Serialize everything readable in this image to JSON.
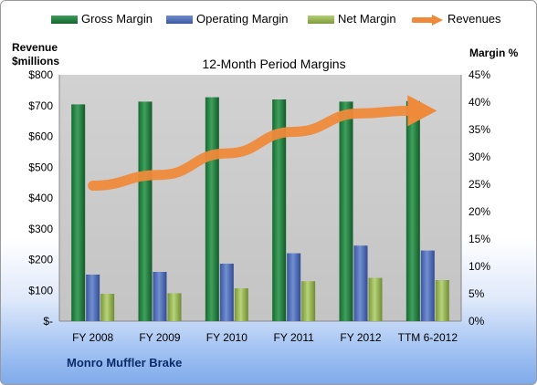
{
  "legend": {
    "gross": "Gross Margin",
    "operating": "Operating Margin",
    "net": "Net Margin",
    "revenues": "Revenues"
  },
  "axis": {
    "left_title_line1": "Revenue",
    "left_title_line2": "$millions",
    "right_title": "Margin %"
  },
  "company": "Monro Muffler Brake",
  "colors": {
    "gross": "#1e7a3c",
    "operating": "#4a68b0",
    "net": "#8fb04e",
    "revenues": "#ee8a3a",
    "plot_background": "#cccccc"
  },
  "chart_data": {
    "type": "bar",
    "title": "12-Month Period Margins",
    "categories": [
      "FY 2008",
      "FY 2009",
      "FY 2010",
      "FY 2011",
      "FY 2012",
      "TTM 6-2012"
    ],
    "series": [
      {
        "name": "Gross Margin",
        "axis": "right",
        "values": [
          39.6,
          40.1,
          40.9,
          40.5,
          40.1,
          40.2
        ]
      },
      {
        "name": "Operating Margin",
        "axis": "right",
        "values": [
          8.5,
          9.0,
          10.5,
          12.4,
          13.8,
          12.9
        ]
      },
      {
        "name": "Net Margin",
        "axis": "right",
        "values": [
          5.0,
          5.1,
          6.0,
          7.3,
          7.9,
          7.5
        ]
      },
      {
        "name": "Revenues",
        "axis": "left",
        "type": "line",
        "values": [
          440,
          475,
          545,
          615,
          675,
          685
        ]
      }
    ],
    "left_axis": {
      "min": 0,
      "max": 800,
      "step": 100,
      "ticks": [
        "$-",
        "$100",
        "$200",
        "$300",
        "$400",
        "$500",
        "$600",
        "$700",
        "$800"
      ]
    },
    "right_axis": {
      "min": 0,
      "max": 45,
      "step": 5,
      "ticks": [
        "0%",
        "5%",
        "10%",
        "15%",
        "20%",
        "25%",
        "30%",
        "35%",
        "40%",
        "45%"
      ]
    },
    "grid": false,
    "legend_position": "top"
  }
}
